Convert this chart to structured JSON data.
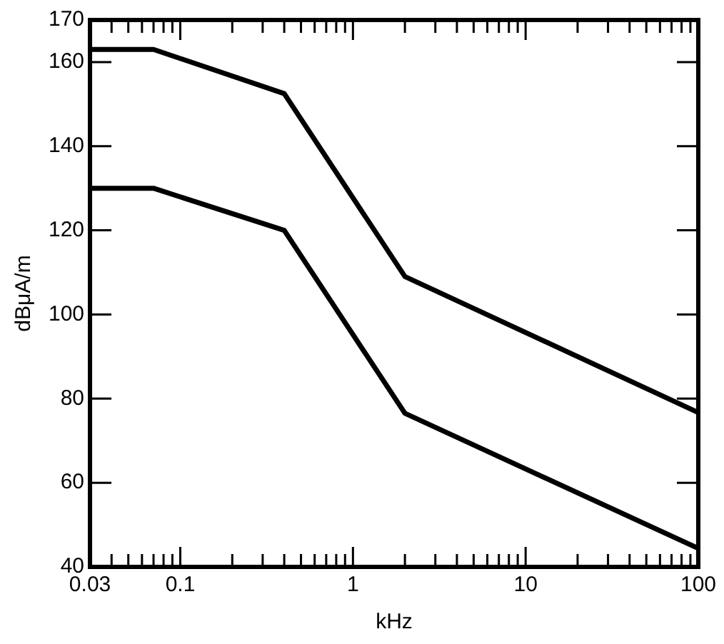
{
  "chart_data": {
    "type": "line",
    "xlabel": "kHz",
    "ylabel": "dBμA/m",
    "log": "x",
    "xlim": [
      0.03,
      100
    ],
    "xticks": [
      0.03,
      {
        "value": 0.04,
        "label": null
      },
      {
        "value": 0.05,
        "label": null
      },
      {
        "value": 0.06,
        "label": null
      },
      {
        "value": 0.07,
        "label": null
      },
      {
        "value": 0.08,
        "label": null
      },
      {
        "value": 0.09,
        "label": null
      },
      0.1,
      {
        "value": 0.2,
        "label": null
      },
      {
        "value": 0.3,
        "label": null
      },
      {
        "value": 0.4,
        "label": null
      },
      {
        "value": 0.5,
        "label": null
      },
      {
        "value": 0.6,
        "label": null
      },
      {
        "value": 0.7,
        "label": null
      },
      {
        "value": 0.8,
        "label": null
      },
      {
        "value": 0.9,
        "label": null
      },
      1,
      {
        "value": 2,
        "label": null
      },
      {
        "value": 3,
        "label": null
      },
      {
        "value": 4,
        "label": null
      },
      {
        "value": 5,
        "label": null
      },
      {
        "value": 6,
        "label": null
      },
      {
        "value": 7,
        "label": null
      },
      {
        "value": 8,
        "label": null
      },
      {
        "value": 9,
        "label": null
      },
      10,
      {
        "value": 20,
        "label": null
      },
      {
        "value": 30,
        "label": null
      },
      {
        "value": 40,
        "label": null
      },
      {
        "value": 50,
        "label": null
      },
      {
        "value": 60,
        "label": null
      },
      {
        "value": 70,
        "label": null
      },
      {
        "value": 80,
        "label": null
      },
      {
        "value": 90,
        "label": null
      },
      100
    ],
    "ylim": [
      40,
      170
    ],
    "yticks": [
      40,
      60,
      80,
      100,
      120,
      140,
      160,
      170
    ],
    "grid": false,
    "legend": false,
    "marker": "none",
    "line_style": "solid",
    "series": [
      {
        "color": "#000000",
        "x": [
          0.03,
          0.07,
          0.4,
          2,
          100
        ],
        "values": [
          163,
          163,
          152.5,
          109,
          76.7
        ]
      },
      {
        "color": "#000000",
        "x": [
          0.03,
          0.07,
          0.4,
          2,
          100
        ],
        "values": [
          130,
          130,
          120,
          76.5,
          44.4
        ]
      }
    ]
  }
}
